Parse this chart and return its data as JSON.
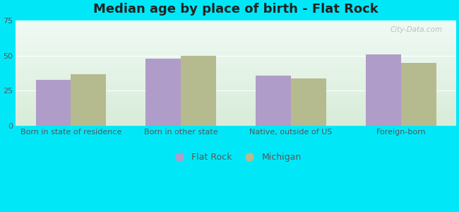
{
  "title": "Median age by place of birth - Flat Rock",
  "categories": [
    "Born in state of residence",
    "Born in other state",
    "Native, outside of US",
    "Foreign-born"
  ],
  "flat_rock_values": [
    33,
    48,
    36,
    51
  ],
  "michigan_values": [
    37,
    50,
    34,
    45
  ],
  "flat_rock_color": "#b09cc8",
  "michigan_color": "#b5bb8e",
  "gradient_top": "#f0faf5",
  "gradient_bottom": "#d8ecd8",
  "outer_bg": "#00e8f8",
  "ylim": [
    0,
    75
  ],
  "yticks": [
    0,
    25,
    50,
    75
  ],
  "bar_width": 0.32,
  "legend_labels": [
    "Flat Rock",
    "Michigan"
  ],
  "title_fontsize": 13,
  "tick_fontsize": 8,
  "legend_fontsize": 9,
  "watermark_text": "City-Data.com"
}
